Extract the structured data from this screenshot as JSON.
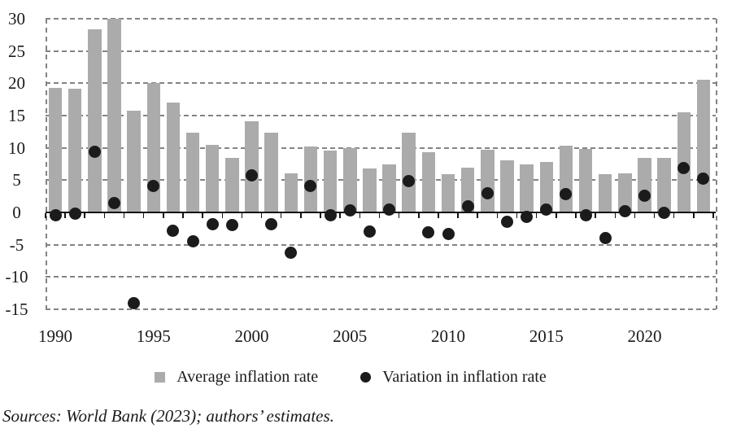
{
  "chart_data": {
    "type": "bar",
    "title": "",
    "xlabel": "",
    "ylabel": "",
    "categories": [
      1990,
      1991,
      1992,
      1993,
      1994,
      1995,
      1996,
      1997,
      1998,
      1999,
      2000,
      2001,
      2002,
      2003,
      2004,
      2005,
      2006,
      2007,
      2008,
      2009,
      2010,
      2011,
      2012,
      2013,
      2014,
      2015,
      2016,
      2017,
      2018,
      2019,
      2020,
      2021,
      2022,
      2023
    ],
    "series": [
      {
        "name": "Average inflation rate",
        "type": "bar",
        "color": "#ABABAB",
        "values": [
          19.3,
          19.1,
          28.4,
          30.0,
          15.8,
          20.0,
          17.0,
          12.4,
          10.4,
          8.4,
          14.1,
          12.3,
          6.1,
          10.2,
          9.6,
          9.9,
          6.8,
          7.4,
          12.3,
          9.3,
          5.9,
          6.9,
          9.7,
          8.1,
          7.5,
          7.8,
          10.3,
          9.8,
          5.9,
          6.0,
          8.5,
          8.5,
          15.5,
          20.6
        ]
      },
      {
        "name": "Variation in inflation rate",
        "type": "scatter",
        "color": "#1B1B1B",
        "values": [
          -0.5,
          -0.2,
          9.4,
          1.5,
          -14.0,
          4.1,
          -2.8,
          -4.5,
          -1.8,
          -2.0,
          5.7,
          -1.8,
          -6.3,
          4.1,
          -0.5,
          0.3,
          -3.0,
          0.5,
          4.9,
          -3.1,
          -3.4,
          1.0,
          3.0,
          -1.4,
          -0.7,
          0.5,
          2.8,
          -0.5,
          -4.0,
          0.2,
          2.6,
          -0.1,
          6.9,
          5.2
        ]
      }
    ],
    "ylim": [
      -15,
      30
    ],
    "yticks": [
      30,
      25,
      20,
      15,
      10,
      5,
      0,
      -5,
      -10,
      -15
    ],
    "xtick_years": [
      1990,
      1995,
      2000,
      2005,
      2010,
      2015,
      2020
    ],
    "xtick_labels": [
      "1990",
      "1995",
      "2000",
      "2005",
      "2010",
      "2015",
      "2020"
    ],
    "grid": "horizontal-dashed",
    "legend_position": "bottom-center"
  },
  "legend": {
    "items": [
      {
        "label": "Average inflation rate",
        "marker": "square"
      },
      {
        "label": "Variation in inflation rate",
        "marker": "circle"
      }
    ]
  },
  "source_note": "Sources: World Bank (2023); authors’ estimates.",
  "colors": {
    "bar": "#ABABAB",
    "dot": "#1B1B1B",
    "gridline": "#848484",
    "axis": "#111111"
  }
}
